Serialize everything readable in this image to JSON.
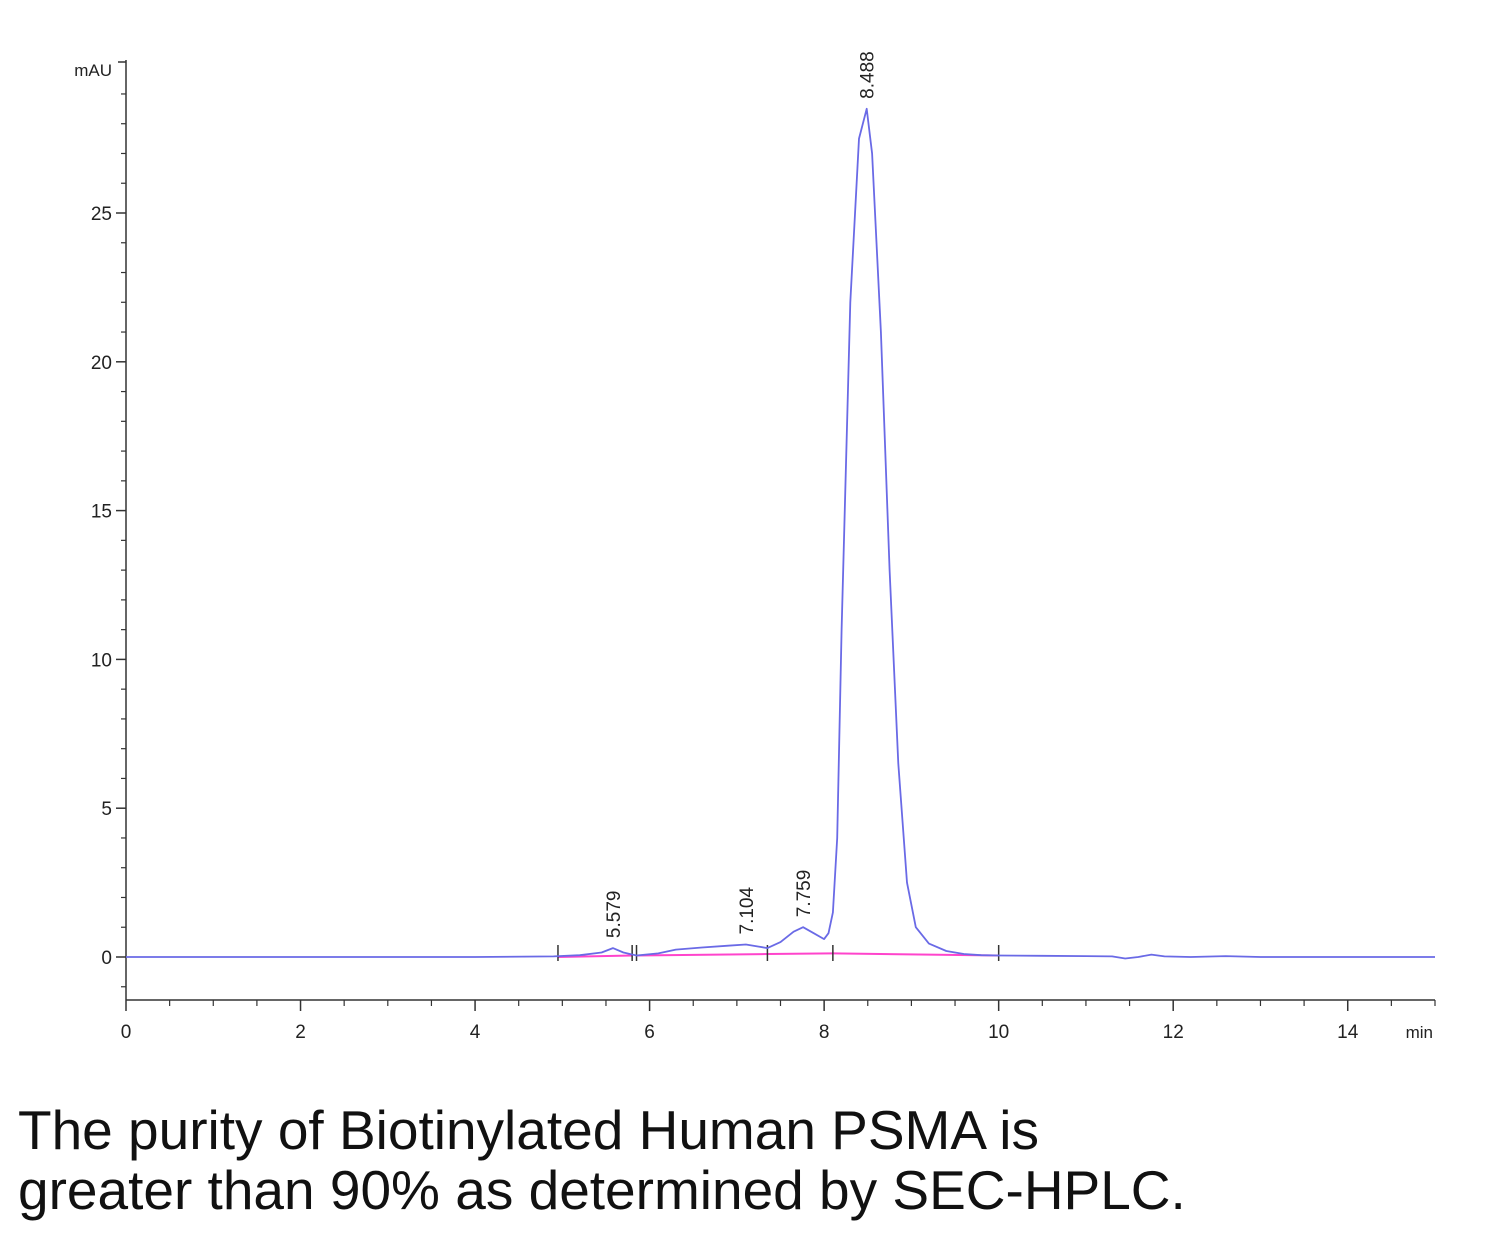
{
  "chart_data": {
    "type": "line",
    "ylabel": "mAU",
    "xlabel": "min",
    "xlim": [
      0,
      15
    ],
    "ylim": [
      -1.5,
      30
    ],
    "x_ticks": [
      0,
      2,
      4,
      6,
      8,
      10,
      12,
      14
    ],
    "y_ticks": [
      0,
      5,
      10,
      15,
      20,
      25
    ],
    "grid": false,
    "colors": {
      "signal": "#6a6ae6",
      "baseline": "#ff44cc",
      "axis": "#333333"
    },
    "series": [
      {
        "x": [
          0,
          1,
          2,
          3,
          4,
          4.9,
          5.2,
          5.45,
          5.579,
          5.7,
          5.85,
          6.1,
          6.3,
          6.6,
          6.9,
          7.104,
          7.25,
          7.35,
          7.5,
          7.65,
          7.759,
          7.88,
          8.0,
          8.05,
          8.1,
          8.15,
          8.2,
          8.3,
          8.4,
          8.488,
          8.55,
          8.65,
          8.75,
          8.85,
          8.95,
          9.05,
          9.2,
          9.4,
          9.6,
          9.8,
          10.0,
          10.5,
          11,
          11.3,
          11.45,
          11.6,
          11.75,
          11.9,
          12.2,
          12.6,
          13,
          13.5,
          14,
          14.5,
          15
        ],
        "y": [
          0,
          0,
          0,
          0,
          0,
          0.02,
          0.06,
          0.15,
          0.3,
          0.15,
          0.05,
          0.12,
          0.25,
          0.32,
          0.38,
          0.42,
          0.35,
          0.3,
          0.5,
          0.85,
          1.0,
          0.8,
          0.6,
          0.8,
          1.5,
          4.0,
          11.0,
          22.0,
          27.5,
          28.5,
          27.0,
          21.0,
          13.0,
          6.5,
          2.5,
          1.0,
          0.45,
          0.2,
          0.1,
          0.06,
          0.05,
          0.04,
          0.03,
          0.02,
          -0.05,
          0.0,
          0.08,
          0.02,
          0.0,
          0.03,
          0.0,
          0.0,
          0.0,
          0.0,
          0.0
        ]
      }
    ],
    "baseline_segments": [
      {
        "x": [
          4.95,
          5.8
        ],
        "y": [
          0.0,
          0.05
        ]
      },
      {
        "x": [
          5.85,
          7.35
        ],
        "y": [
          0.05,
          0.1
        ]
      },
      {
        "x": [
          7.35,
          8.1
        ],
        "y": [
          0.1,
          0.12
        ]
      },
      {
        "x": [
          8.1,
          10.0
        ],
        "y": [
          0.12,
          0.05
        ]
      }
    ],
    "peak_labels": [
      {
        "label": "5.579",
        "x": 5.579,
        "y": 0.3
      },
      {
        "label": "7.104",
        "x": 7.104,
        "y": 0.42
      },
      {
        "label": "7.759",
        "x": 7.759,
        "y": 1.0
      },
      {
        "label": "8.488",
        "x": 8.488,
        "y": 28.5
      }
    ],
    "integration_marks": [
      4.95,
      5.8,
      5.85,
      7.35,
      8.1,
      10.0
    ]
  },
  "caption": {
    "line1": "The purity of Biotinylated Human PSMA is",
    "line2": "greater than 90% as determined by SEC-HPLC."
  }
}
